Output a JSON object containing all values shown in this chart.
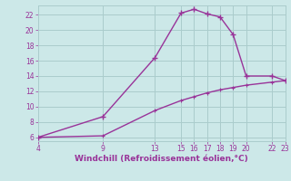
{
  "line1_x": [
    4,
    9,
    13,
    15,
    16,
    17,
    18,
    19,
    20,
    22,
    23
  ],
  "line1_y": [
    6.0,
    8.7,
    16.4,
    22.2,
    22.7,
    22.1,
    21.7,
    19.4,
    14.0,
    14.0,
    13.4
  ],
  "line2_x": [
    4,
    9,
    13,
    15,
    16,
    17,
    18,
    19,
    20,
    22,
    23
  ],
  "line2_y": [
    6.0,
    6.2,
    9.5,
    10.8,
    11.3,
    11.8,
    12.2,
    12.5,
    12.8,
    13.2,
    13.4
  ],
  "line_color": "#993399",
  "bg_color": "#cce8e8",
  "grid_color": "#aacccc",
  "xlabel": "Windchill (Refroidissement éolien,°C)",
  "xlim": [
    4,
    23
  ],
  "ylim": [
    5.5,
    23.2
  ],
  "xticks": [
    4,
    9,
    13,
    15,
    16,
    17,
    18,
    19,
    20,
    22,
    23
  ],
  "yticks": [
    6,
    8,
    10,
    12,
    14,
    16,
    18,
    20,
    22
  ],
  "tick_fontsize": 5.5,
  "label_fontsize": 6.5,
  "tick_color": "#993399",
  "label_color": "#993399"
}
